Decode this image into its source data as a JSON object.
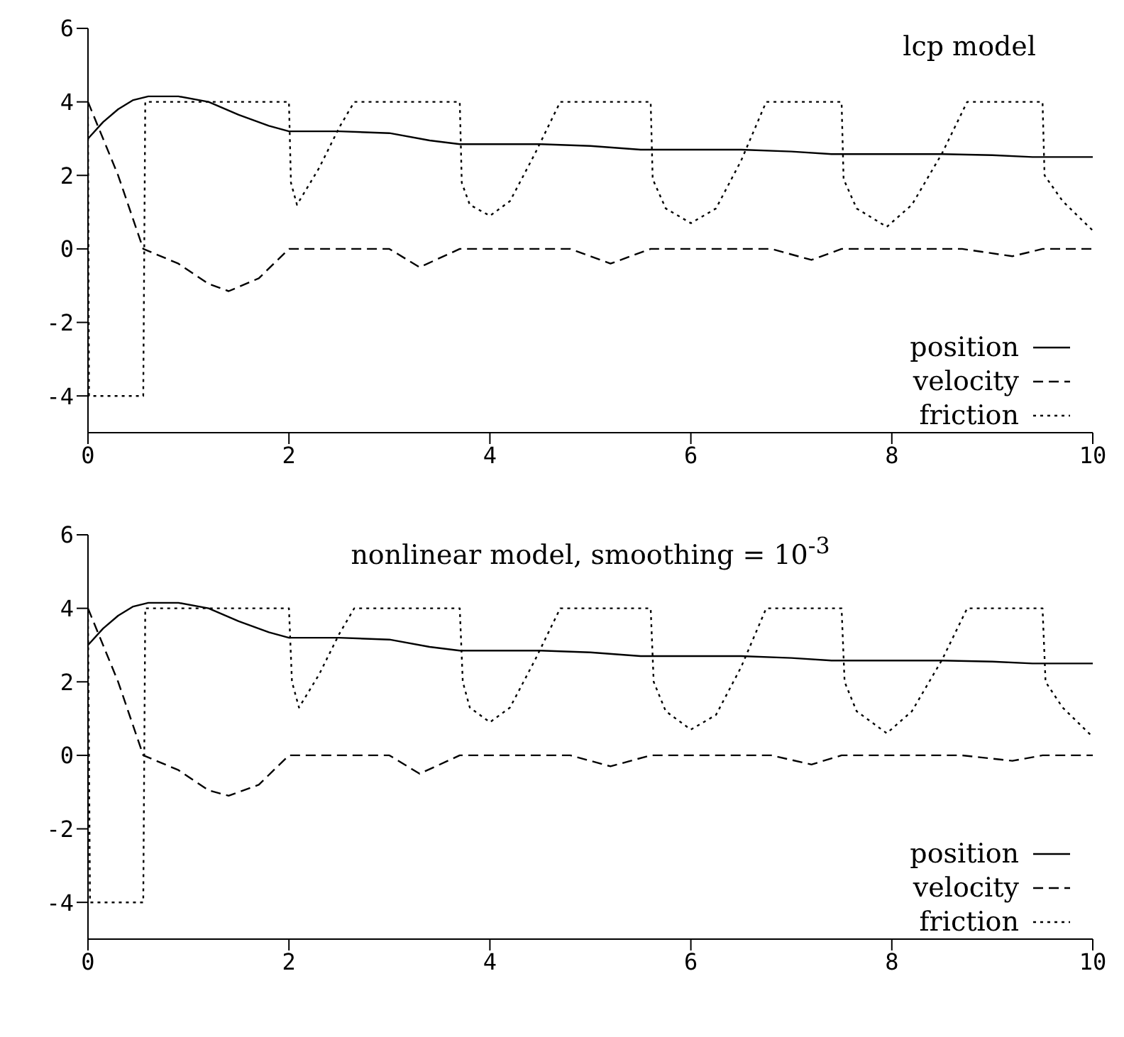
{
  "chart_data": [
    {
      "type": "line",
      "title": "lcp model",
      "xlim": [
        0,
        10
      ],
      "xticks": [
        0,
        2,
        4,
        6,
        8,
        10
      ],
      "ylim": [
        -5,
        6
      ],
      "yticks": [
        -4,
        -2,
        0,
        2,
        4,
        6
      ],
      "grid": false,
      "legend": "bottom right",
      "series": [
        {
          "name": "position",
          "color": "#000000",
          "line_style": "solid",
          "x": [
            0,
            0.15,
            0.3,
            0.45,
            0.6,
            0.9,
            1.2,
            1.5,
            1.8,
            2.0,
            2.5,
            3.0,
            3.4,
            3.7,
            4.5,
            5.0,
            5.5,
            6.5,
            7.0,
            7.4,
            8.5,
            9.0,
            9.4,
            10
          ],
          "values": [
            3,
            3.45,
            3.8,
            4.05,
            4.15,
            4.15,
            4.0,
            3.65,
            3.35,
            3.2,
            3.2,
            3.15,
            2.95,
            2.85,
            2.85,
            2.8,
            2.7,
            2.7,
            2.65,
            2.58,
            2.58,
            2.55,
            2.5,
            2.5
          ]
        },
        {
          "name": "velocity",
          "color": "#000000",
          "line_style": "dashed",
          "x": [
            0,
            0.3,
            0.55,
            0.9,
            1.2,
            1.4,
            1.7,
            2.0,
            3.0,
            3.3,
            3.7,
            4.8,
            5.2,
            5.6,
            6.8,
            7.2,
            7.5,
            8.7,
            9.2,
            9.5,
            10
          ],
          "values": [
            4,
            2,
            0,
            -0.4,
            -0.95,
            -1.15,
            -0.8,
            0,
            0,
            -0.5,
            0,
            0,
            -0.4,
            0,
            0,
            -0.3,
            0,
            0,
            -0.2,
            0,
            0
          ]
        },
        {
          "name": "friction",
          "color": "#000000",
          "line_style": "dotted",
          "x": [
            0,
            0.01,
            0.55,
            0.57,
            2.0,
            2.02,
            2.08,
            2.3,
            2.5,
            2.65,
            3.7,
            3.72,
            3.8,
            4.0,
            4.2,
            4.45,
            4.7,
            5.6,
            5.62,
            5.75,
            6.0,
            6.25,
            6.5,
            6.75,
            7.5,
            7.52,
            7.65,
            7.95,
            8.2,
            8.5,
            8.75,
            9.5,
            9.52,
            9.7,
            10
          ],
          "values": [
            3.6,
            -4,
            -4,
            4,
            4,
            1.8,
            1.2,
            2.2,
            3.3,
            4,
            4,
            1.8,
            1.2,
            0.9,
            1.3,
            2.6,
            4,
            4,
            1.9,
            1.1,
            0.7,
            1.1,
            2.4,
            4,
            4,
            1.9,
            1.1,
            0.6,
            1.2,
            2.6,
            4,
            4,
            2,
            1.3,
            0.5
          ]
        }
      ]
    },
    {
      "type": "line",
      "title": "nonlinear model, smoothing = 10$^{-3}$",
      "xlim": [
        0,
        10
      ],
      "xticks": [
        0,
        2,
        4,
        6,
        8,
        10
      ],
      "ylim": [
        -5,
        6
      ],
      "yticks": [
        -4,
        -2,
        0,
        2,
        4,
        6
      ],
      "grid": false,
      "legend": "bottom right",
      "series": [
        {
          "name": "position",
          "color": "#000000",
          "line_style": "solid",
          "x": [
            0,
            0.15,
            0.3,
            0.45,
            0.6,
            0.9,
            1.2,
            1.5,
            1.8,
            2.0,
            2.5,
            3.0,
            3.4,
            3.7,
            4.5,
            5.0,
            5.5,
            6.5,
            7.0,
            7.4,
            8.5,
            9.0,
            9.4,
            10
          ],
          "values": [
            3,
            3.45,
            3.8,
            4.05,
            4.15,
            4.15,
            4.0,
            3.65,
            3.35,
            3.2,
            3.2,
            3.15,
            2.95,
            2.85,
            2.85,
            2.8,
            2.7,
            2.7,
            2.65,
            2.58,
            2.58,
            2.55,
            2.5,
            2.5
          ]
        },
        {
          "name": "velocity",
          "color": "#000000",
          "line_style": "dashed",
          "x": [
            0,
            0.3,
            0.55,
            0.9,
            1.2,
            1.4,
            1.7,
            2.0,
            3.0,
            3.3,
            3.7,
            4.8,
            5.2,
            5.6,
            6.8,
            7.2,
            7.5,
            8.7,
            9.2,
            9.5,
            10
          ],
          "values": [
            4,
            2,
            0,
            -0.4,
            -0.95,
            -1.1,
            -0.8,
            0,
            0,
            -0.5,
            0,
            0,
            -0.3,
            0,
            0,
            -0.25,
            0,
            0,
            -0.15,
            0,
            0
          ]
        },
        {
          "name": "friction",
          "color": "#000000",
          "line_style": "dotted",
          "x": [
            0,
            0.02,
            0.55,
            0.57,
            2.0,
            2.03,
            2.1,
            2.3,
            2.5,
            2.65,
            3.7,
            3.73,
            3.8,
            4.0,
            4.2,
            4.45,
            4.7,
            5.6,
            5.63,
            5.75,
            6.0,
            6.25,
            6.5,
            6.75,
            7.5,
            7.53,
            7.65,
            7.95,
            8.2,
            8.5,
            8.75,
            9.5,
            9.53,
            9.7,
            10
          ],
          "values": [
            3.9,
            -4,
            -4,
            4,
            4,
            2.0,
            1.3,
            2.2,
            3.3,
            4,
            4,
            2.0,
            1.3,
            0.9,
            1.3,
            2.6,
            4,
            4,
            2.0,
            1.2,
            0.7,
            1.1,
            2.4,
            4,
            4,
            2.0,
            1.2,
            0.6,
            1.2,
            2.6,
            4,
            4,
            2,
            1.3,
            0.5
          ]
        }
      ]
    }
  ]
}
